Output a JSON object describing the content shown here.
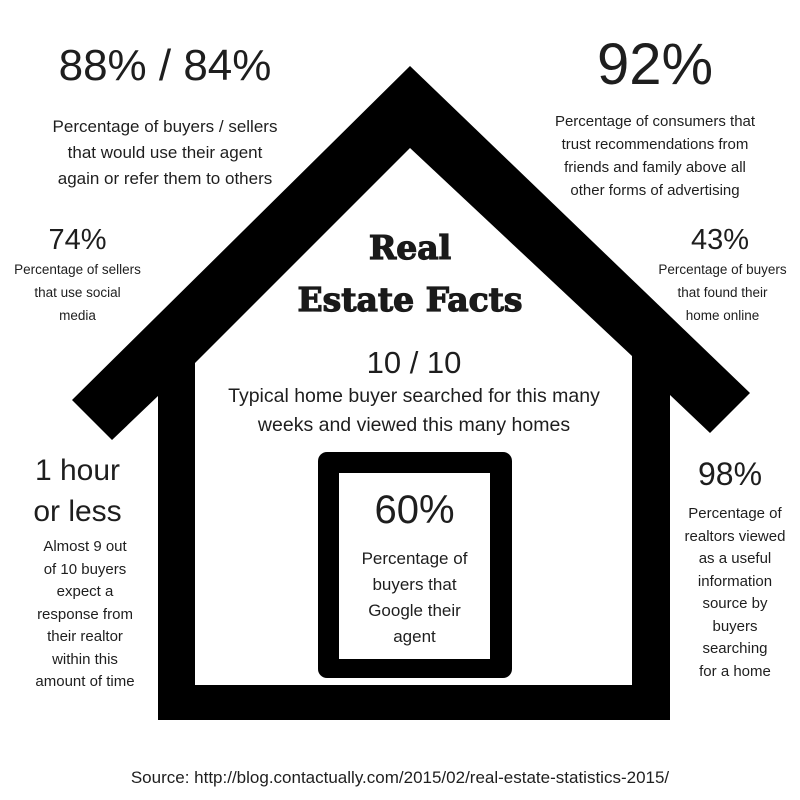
{
  "title": "Real\nEstate Facts",
  "facts": {
    "top_left": {
      "value": "88% / 84%",
      "text": "Percentage of buyers / sellers\nthat  would use their agent\nagain or refer them to others"
    },
    "top_right": {
      "value": "92%",
      "text": "Percentage of consumers that\ntrust recommendations from\nfriends and family above all\nother forms of advertising"
    },
    "mid_left": {
      "value": "74%",
      "text": "Percentage of sellers\nthat use social\nmedia"
    },
    "mid_right": {
      "value": "43%",
      "text": "Percentage of buyers\nthat found their\nhome online"
    },
    "center": {
      "value": "10 / 10",
      "text": "Typical home buyer searched for this many\nweeks and viewed this many homes"
    },
    "phone": {
      "value": "60%",
      "text": "Percentage of\nbuyers that\nGoogle their\nagent"
    },
    "bottom_left": {
      "value": "1 hour\nor less",
      "text": "Almost 9 out\nof 10 buyers\nexpect a\nresponse from\ntheir realtor\nwithin this\namount of time"
    },
    "bottom_right": {
      "value": "98%",
      "text": "Percentage of\nrealtors viewed\nas a useful\ninformation\nsource by\nbuyers\nsearching\nfor a home"
    }
  },
  "source": "Source: http://blog.contactually.com/2015/02/real-estate-statistics-2015/",
  "colors": {
    "house": "#000000",
    "text": "#1e1e1e",
    "background": "#ffffff"
  },
  "icons": {
    "house": "house-outline-icon",
    "phone": "smartphone-icon"
  }
}
